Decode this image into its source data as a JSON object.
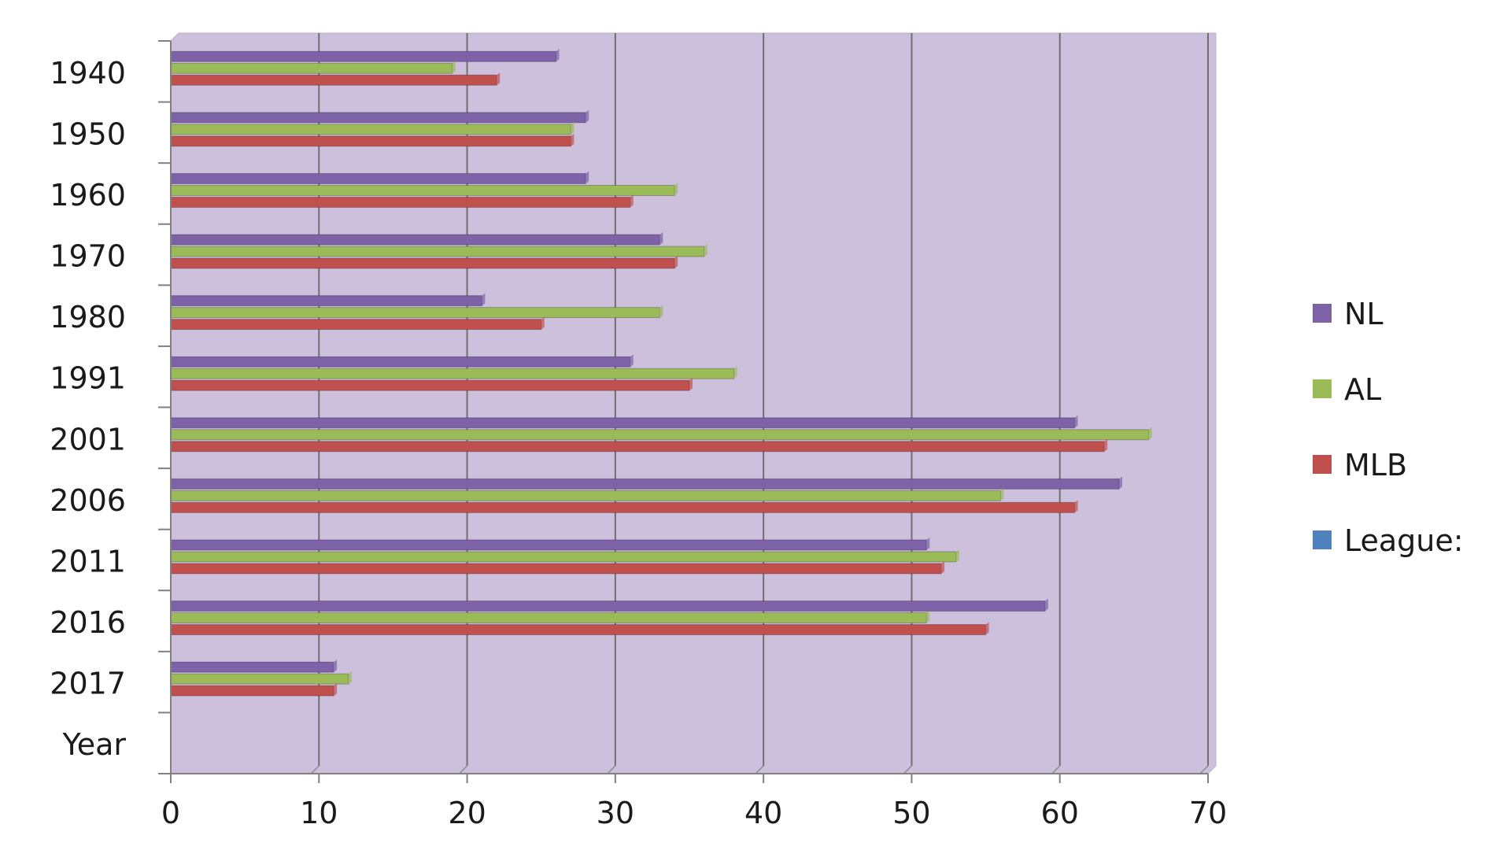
{
  "chart_data": {
    "type": "bar",
    "orientation": "horizontal",
    "categories": [
      "1940",
      "1950",
      "1960",
      "1970",
      "1980",
      "1991",
      "2001",
      "2006",
      "2011",
      "2016",
      "2017",
      "Year"
    ],
    "series": [
      {
        "name": "NL",
        "color": "#7E62A8",
        "values": [
          26,
          28,
          28,
          33,
          21,
          31,
          61,
          64,
          51,
          59,
          11,
          0
        ]
      },
      {
        "name": "AL",
        "color": "#9BBB59",
        "values": [
          19,
          27,
          34,
          36,
          33,
          38,
          66,
          56,
          53,
          51,
          12,
          0
        ]
      },
      {
        "name": "MLB",
        "color": "#C0504D",
        "values": [
          22,
          27,
          31,
          34,
          25,
          35,
          63,
          61,
          52,
          55,
          11,
          0
        ]
      },
      {
        "name": "League:",
        "color": "#4F81BD",
        "values": [
          0,
          0,
          0,
          0,
          0,
          0,
          0,
          0,
          0,
          0,
          0,
          0
        ]
      }
    ],
    "xlim": [
      0,
      70
    ],
    "x_ticks": [
      "0",
      "10",
      "20",
      "30",
      "40",
      "50",
      "60",
      "70"
    ],
    "grid": "vertical",
    "plot_background": "#CDC0DD",
    "legend_position": "right",
    "title": "",
    "xlabel": "",
    "ylabel": ""
  }
}
